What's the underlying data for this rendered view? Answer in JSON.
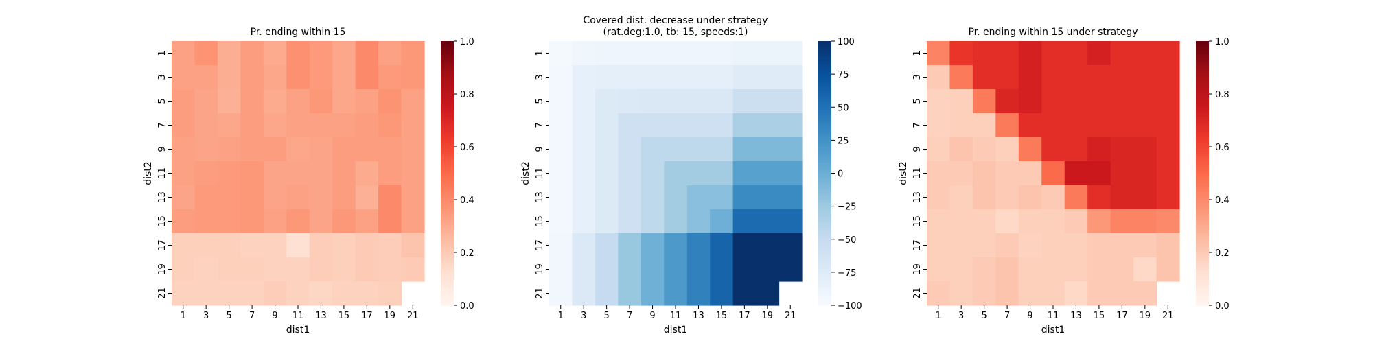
{
  "chart_data": [
    {
      "type": "heatmap",
      "title": "Pr. ending within 15",
      "subtitle": "",
      "xlabel": "dist1",
      "ylabel": "dist2",
      "x_tick_labels": [
        "1",
        "3",
        "5",
        "7",
        "9",
        "11",
        "13",
        "15",
        "17",
        "19",
        "21"
      ],
      "y_tick_labels": [
        "1",
        "3",
        "5",
        "7",
        "9",
        "11",
        "13",
        "15",
        "17",
        "19",
        "21"
      ],
      "vmin": 0.0,
      "vmax": 1.0,
      "colormap": "Reds",
      "colorbar_ticks": [
        "0.0",
        "0.2",
        "0.4",
        "0.6",
        "0.8",
        "1.0"
      ],
      "values": [
        [
          0.33,
          0.37,
          0.29,
          0.34,
          0.3,
          0.38,
          0.35,
          0.31,
          0.4,
          0.33,
          0.36
        ],
        [
          0.33,
          0.33,
          0.29,
          0.34,
          0.31,
          0.38,
          0.35,
          0.31,
          0.4,
          0.35,
          0.36
        ],
        [
          0.34,
          0.32,
          0.28,
          0.34,
          0.3,
          0.33,
          0.36,
          0.31,
          0.33,
          0.37,
          0.33
        ],
        [
          0.34,
          0.32,
          0.31,
          0.34,
          0.31,
          0.33,
          0.33,
          0.33,
          0.34,
          0.36,
          0.33
        ],
        [
          0.33,
          0.32,
          0.33,
          0.34,
          0.34,
          0.31,
          0.32,
          0.34,
          0.34,
          0.34,
          0.33
        ],
        [
          0.33,
          0.34,
          0.35,
          0.36,
          0.32,
          0.32,
          0.32,
          0.34,
          0.3,
          0.34,
          0.33
        ],
        [
          0.32,
          0.35,
          0.35,
          0.36,
          0.32,
          0.33,
          0.32,
          0.34,
          0.28,
          0.4,
          0.33
        ],
        [
          0.34,
          0.35,
          0.35,
          0.36,
          0.33,
          0.36,
          0.32,
          0.36,
          0.33,
          0.4,
          0.33
        ],
        [
          0.18,
          0.18,
          0.18,
          0.17,
          0.17,
          0.12,
          0.19,
          0.18,
          0.2,
          0.19,
          0.22
        ],
        [
          0.18,
          0.17,
          0.18,
          0.18,
          0.17,
          0.17,
          0.19,
          0.18,
          0.2,
          0.19,
          0.2
        ],
        [
          0.17,
          0.17,
          0.17,
          0.17,
          0.19,
          0.17,
          0.16,
          0.17,
          0.17,
          0.18,
          null
        ]
      ]
    },
    {
      "type": "heatmap",
      "title": "Covered dist. decrease under strategy",
      "subtitle": "(rat.deg:1.0, tb: 15, speeds:1)",
      "xlabel": "dist1",
      "ylabel": "dist2",
      "x_tick_labels": [
        "1",
        "3",
        "5",
        "7",
        "9",
        "11",
        "13",
        "15",
        "17",
        "19",
        "21"
      ],
      "y_tick_labels": [
        "1",
        "3",
        "5",
        "7",
        "9",
        "11",
        "13",
        "15",
        "17",
        "19",
        "21"
      ],
      "vmin": -100,
      "vmax": 100,
      "colormap": "Blues",
      "colorbar_ticks": [
        "−100",
        "−75",
        "−50",
        "−25",
        "0",
        "25",
        "50",
        "75",
        "100"
      ],
      "values": [
        [
          -97,
          -92,
          -91,
          -91,
          -91,
          -91,
          -91,
          -91,
          -89,
          -89,
          -89
        ],
        [
          -96,
          -83,
          -82,
          -81,
          -81,
          -81,
          -81,
          -81,
          -76,
          -76,
          -76
        ],
        [
          -96,
          -83,
          -73,
          -72,
          -71,
          -71,
          -71,
          -71,
          -56,
          -56,
          -56
        ],
        [
          -96,
          -83,
          -73,
          -58,
          -58,
          -58,
          -58,
          -58,
          -33,
          -33,
          -33
        ],
        [
          -96,
          -83,
          -73,
          -58,
          -45,
          -45,
          -45,
          -45,
          -10,
          -10,
          -10
        ],
        [
          -96,
          -83,
          -73,
          -58,
          -45,
          -28,
          -28,
          -28,
          12,
          12,
          12
        ],
        [
          -96,
          -83,
          -73,
          -58,
          -45,
          -28,
          -15,
          -15,
          30,
          30,
          30
        ],
        [
          -96,
          -83,
          -73,
          -58,
          -45,
          -28,
          -15,
          -1,
          55,
          55,
          55
        ],
        [
          -94,
          -72,
          -50,
          -22,
          -2,
          18,
          38,
          60,
          100,
          100,
          100
        ],
        [
          -94,
          -72,
          -50,
          -22,
          -2,
          18,
          38,
          60,
          100,
          100,
          100
        ],
        [
          -94,
          -72,
          -50,
          -22,
          -2,
          18,
          38,
          60,
          100,
          100,
          null
        ]
      ]
    },
    {
      "type": "heatmap",
      "title": "Pr. ending within 15 under strategy",
      "subtitle": "",
      "xlabel": "dist1",
      "ylabel": "dist2",
      "x_tick_labels": [
        "1",
        "3",
        "5",
        "7",
        "9",
        "11",
        "13",
        "15",
        "17",
        "19",
        "21"
      ],
      "y_tick_labels": [
        "1",
        "3",
        "5",
        "7",
        "9",
        "11",
        "13",
        "15",
        "17",
        "19",
        "21"
      ],
      "vmin": 0.0,
      "vmax": 1.0,
      "colormap": "Reds",
      "colorbar_ticks": [
        "0.0",
        "0.2",
        "0.4",
        "0.6",
        "0.8",
        "1.0"
      ],
      "values": [
        [
          0.42,
          0.65,
          0.67,
          0.67,
          0.72,
          0.67,
          0.67,
          0.72,
          0.67,
          0.67,
          0.67
        ],
        [
          0.2,
          0.45,
          0.67,
          0.67,
          0.72,
          0.67,
          0.67,
          0.67,
          0.67,
          0.67,
          0.67
        ],
        [
          0.17,
          0.18,
          0.45,
          0.7,
          0.72,
          0.67,
          0.67,
          0.67,
          0.67,
          0.67,
          0.67
        ],
        [
          0.17,
          0.18,
          0.18,
          0.45,
          0.67,
          0.67,
          0.67,
          0.67,
          0.67,
          0.67,
          0.67
        ],
        [
          0.18,
          0.22,
          0.2,
          0.18,
          0.45,
          0.67,
          0.67,
          0.72,
          0.7,
          0.7,
          0.67
        ],
        [
          0.2,
          0.2,
          0.22,
          0.2,
          0.2,
          0.5,
          0.75,
          0.75,
          0.7,
          0.7,
          0.67
        ],
        [
          0.2,
          0.18,
          0.22,
          0.2,
          0.22,
          0.2,
          0.45,
          0.67,
          0.7,
          0.7,
          0.67
        ],
        [
          0.18,
          0.18,
          0.18,
          0.15,
          0.18,
          0.18,
          0.2,
          0.36,
          0.42,
          0.42,
          0.4
        ],
        [
          0.18,
          0.18,
          0.18,
          0.2,
          0.17,
          0.18,
          0.18,
          0.2,
          0.2,
          0.2,
          0.22
        ],
        [
          0.18,
          0.18,
          0.2,
          0.22,
          0.18,
          0.18,
          0.18,
          0.2,
          0.2,
          0.15,
          0.22
        ],
        [
          0.2,
          0.18,
          0.2,
          0.22,
          0.18,
          0.18,
          0.15,
          0.2,
          0.2,
          0.2,
          null
        ]
      ]
    }
  ]
}
